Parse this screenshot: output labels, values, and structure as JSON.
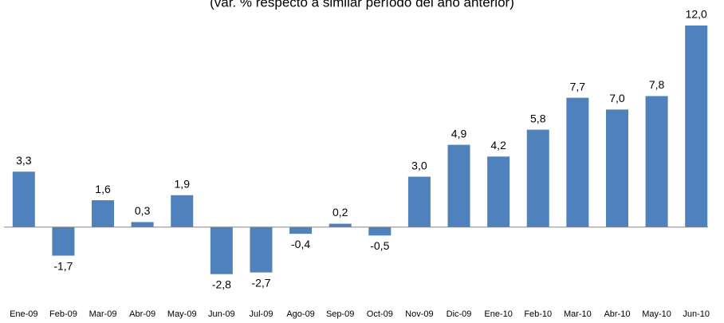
{
  "chart_data": {
    "type": "bar",
    "subtitle": "(var. % respecto a similar período del año anterior)",
    "categories": [
      "Ene-09",
      "Feb-09",
      "Mar-09",
      "Abr-09",
      "May-09",
      "Jun-09",
      "Jul-09",
      "Ago-09",
      "Sep-09",
      "Oct-09",
      "Nov-09",
      "Dic-09",
      "Ene-10",
      "Feb-10",
      "Mar-10",
      "Abr-10",
      "May-10",
      "Jun-10"
    ],
    "values": [
      3.3,
      -1.7,
      1.6,
      0.3,
      1.9,
      -2.8,
      -2.7,
      -0.4,
      0.2,
      -0.5,
      3.0,
      4.9,
      4.2,
      5.8,
      7.7,
      7.0,
      7.8,
      12.0
    ],
    "value_labels": [
      "3,3",
      "-1,7",
      "1,6",
      "0,3",
      "1,9",
      "-2,8",
      "-2,7",
      "-0,4",
      "0,2",
      "-0,5",
      "3,0",
      "4,9",
      "4,2",
      "5,8",
      "7,7",
      "7,0",
      "7,8",
      "12,0"
    ],
    "color": "#4f81bd",
    "ylim": [
      -4,
      12.5
    ]
  }
}
